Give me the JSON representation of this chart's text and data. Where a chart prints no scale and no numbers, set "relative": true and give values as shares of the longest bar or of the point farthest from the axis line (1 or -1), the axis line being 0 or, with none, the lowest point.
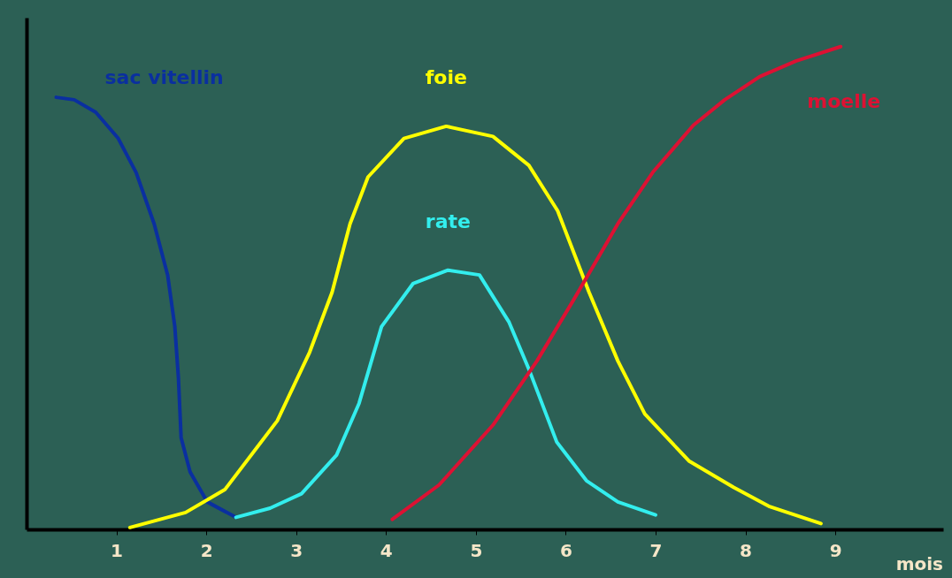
{
  "chart_data": {
    "type": "line",
    "relative": true,
    "xlabel": "mois",
    "xlim": [
      0,
      10.2
    ],
    "xticks": [
      1,
      2,
      3,
      4,
      5,
      6,
      7,
      8,
      9
    ],
    "grid": false,
    "legend": false,
    "marker": "none",
    "line_style": "solid",
    "series": [
      {
        "name": "sac vitellin",
        "color": "#0a2fa0",
        "x": [
          0.33,
          0.53,
          0.77,
          1.02,
          1.22,
          1.42,
          1.57,
          1.65,
          1.69,
          1.72,
          1.82,
          2.01,
          2.33
        ],
        "values": [
          0.895,
          0.89,
          0.864,
          0.81,
          0.739,
          0.633,
          0.527,
          0.42,
          0.314,
          0.19,
          0.119,
          0.057,
          0.025
        ]
      },
      {
        "name": "foie",
        "color": "#ffff00",
        "x": [
          1.15,
          1.77,
          2.21,
          2.79,
          3.15,
          3.4,
          3.6,
          3.8,
          4.2,
          4.67,
          5.19,
          5.59,
          5.91,
          6.26,
          6.58,
          6.88,
          7.37,
          7.87,
          8.26,
          8.84
        ],
        "values": [
          0.004,
          0.035,
          0.083,
          0.225,
          0.367,
          0.491,
          0.633,
          0.73,
          0.81,
          0.835,
          0.814,
          0.754,
          0.66,
          0.491,
          0.349,
          0.239,
          0.142,
          0.087,
          0.048,
          0.012
        ]
      },
      {
        "name": "rate",
        "color": "#33eeee",
        "x": [
          2.33,
          2.71,
          3.06,
          3.45,
          3.7,
          3.95,
          4.3,
          4.69,
          5.04,
          5.37,
          5.59,
          5.9,
          6.23,
          6.58,
          7.0
        ],
        "values": [
          0.025,
          0.044,
          0.074,
          0.154,
          0.261,
          0.42,
          0.509,
          0.537,
          0.527,
          0.429,
          0.332,
          0.181,
          0.101,
          0.057,
          0.03
        ]
      },
      {
        "name": "moelle",
        "color": "#dd1133",
        "x": [
          4.07,
          4.59,
          5.19,
          5.68,
          6.08,
          6.58,
          6.97,
          7.42,
          7.77,
          8.16,
          8.56,
          9.06
        ],
        "values": [
          0.021,
          0.092,
          0.216,
          0.349,
          0.473,
          0.633,
          0.74,
          0.837,
          0.89,
          0.938,
          0.97,
          1.0
        ]
      }
    ]
  }
}
